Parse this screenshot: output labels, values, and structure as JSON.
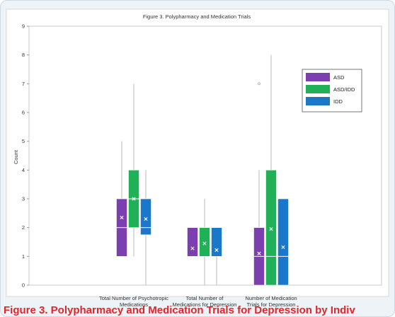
{
  "chart_data": {
    "type": "box",
    "title": "Figure 3. Polypharmacy and Medication Trials",
    "xlabel": "",
    "ylabel": "Count",
    "ylim": [
      0,
      9
    ],
    "yticks": [
      0,
      1,
      2,
      3,
      4,
      5,
      6,
      7,
      8,
      9
    ],
    "grid": false,
    "legend_position": "top-right",
    "categories": [
      "Total Number of Psychotropic Medications",
      "Total Number of Medications for Depression",
      "Number of Medication Trials for Depression"
    ],
    "category_label_lines": [
      [
        "Total Number of Psychotropic",
        "Medications"
      ],
      [
        "Total Number of",
        "Medications for Depression"
      ],
      [
        "Number of Medication",
        "Trials for Depression"
      ]
    ],
    "series": [
      {
        "name": "ASD",
        "color": "#7b3fb0",
        "boxes": [
          {
            "min": 1,
            "q1": 1,
            "median": 2,
            "q3": 3,
            "max": 5,
            "mean": 2.35,
            "outliers": []
          },
          {
            "min": 1,
            "q1": 1,
            "median": 1,
            "q3": 2,
            "max": 2,
            "mean": 1.28,
            "outliers": []
          },
          {
            "min": 0,
            "q1": 0,
            "median": 1,
            "q3": 2,
            "max": 4,
            "mean": 1.1,
            "outliers": [
              7
            ]
          }
        ]
      },
      {
        "name": "ASD/IDD",
        "color": "#1fb058",
        "boxes": [
          {
            "min": 1,
            "q1": 2,
            "median": 3,
            "q3": 4,
            "max": 7,
            "mean": 3.0,
            "outliers": []
          },
          {
            "min": 0,
            "q1": 1,
            "median": 1,
            "q3": 2,
            "max": 3,
            "mean": 1.45,
            "outliers": []
          },
          {
            "min": 0,
            "q1": 0,
            "median": 1,
            "q3": 4,
            "max": 8,
            "mean": 1.95,
            "outliers": []
          }
        ]
      },
      {
        "name": "IDD",
        "color": "#1a77c9",
        "boxes": [
          {
            "min": 0,
            "q1": 1.75,
            "median": 2,
            "q3": 3,
            "max": 4,
            "mean": 2.3,
            "outliers": []
          },
          {
            "min": 0,
            "q1": 1,
            "median": 1,
            "q3": 2,
            "max": 2,
            "mean": 1.22,
            "outliers": []
          },
          {
            "min": 0,
            "q1": 0,
            "median": 1,
            "q3": 3,
            "max": 3,
            "mean": 1.32,
            "outliers": []
          }
        ]
      }
    ]
  },
  "caption": {
    "text": "Figure 3. Polypharmacy and Medication Trials for Depression by Indiv"
  }
}
